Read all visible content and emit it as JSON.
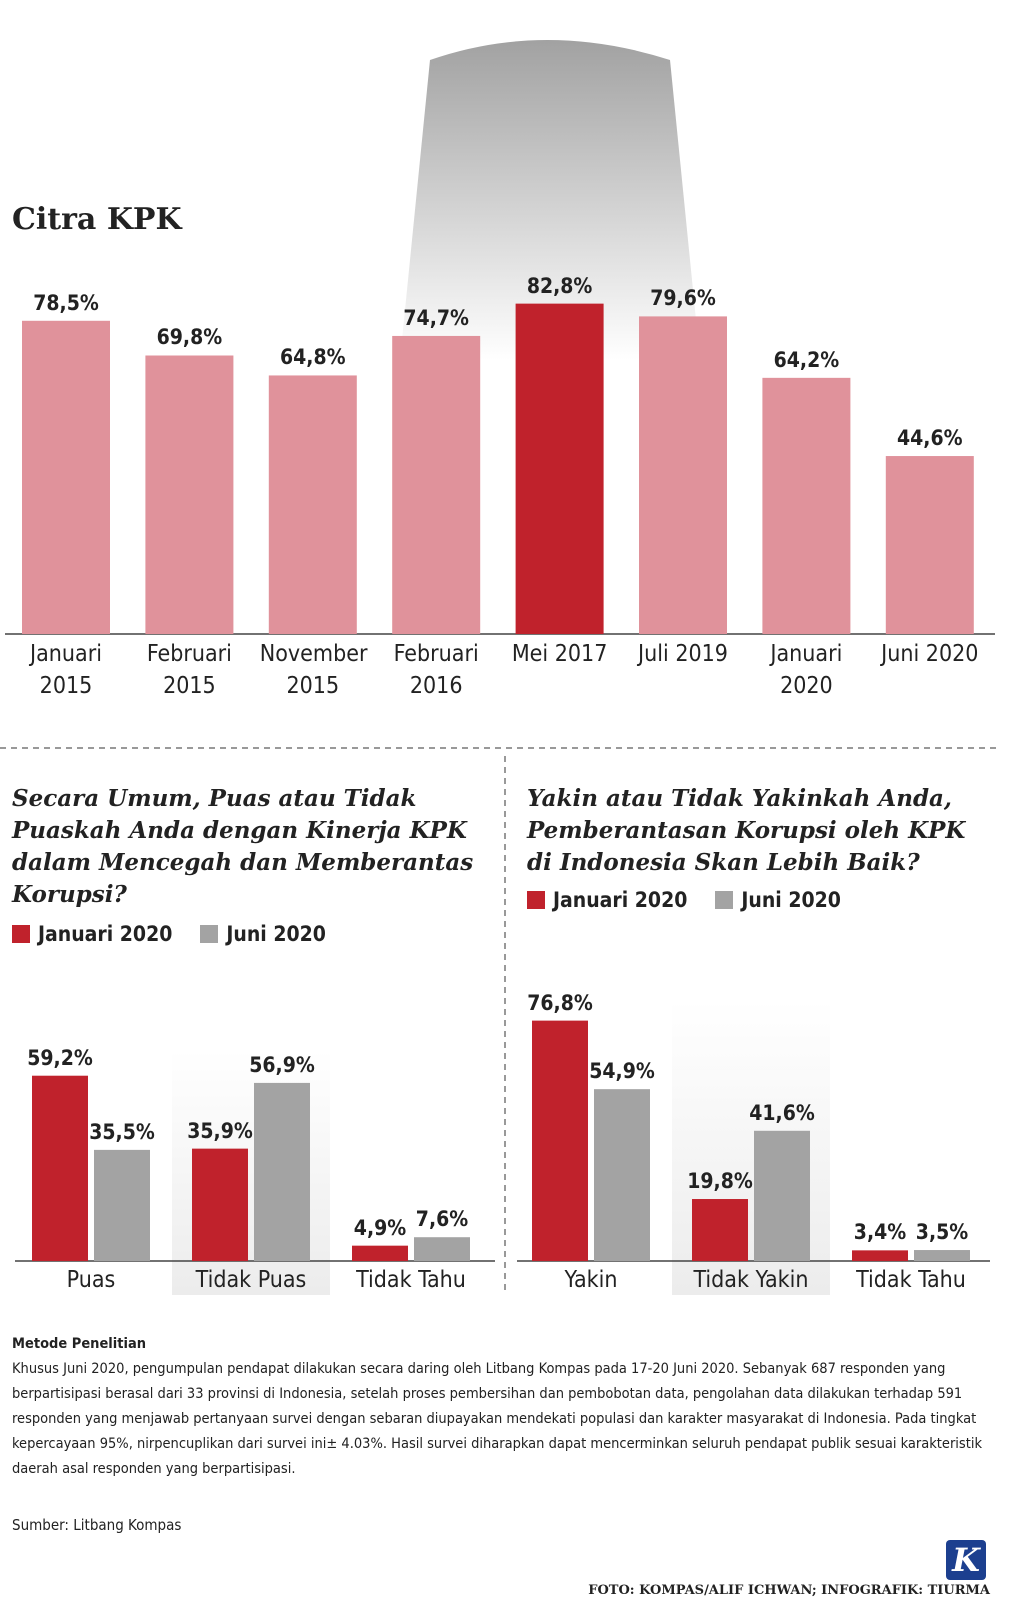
{
  "chart_data": [
    {
      "type": "bar",
      "title": "Citra KPK",
      "categories": [
        "Januari 2015",
        "Februari 2015",
        "November 2015",
        "Februari 2016",
        "Mei 2017",
        "Juli 2019",
        "Januari 2020",
        "Juni 2020"
      ],
      "values": [
        78.5,
        69.8,
        64.8,
        74.7,
        82.8,
        79.6,
        64.2,
        44.6
      ],
      "value_labels": [
        "78,5%",
        "69,8%",
        "64,8%",
        "74,7%",
        "82,8%",
        "79,6%",
        "64,2%",
        "44,6%"
      ],
      "colors": [
        "#e0929b",
        "#e0929b",
        "#e0929b",
        "#e0929b",
        "#c0222c",
        "#e0929b",
        "#e0929b",
        "#e0929b"
      ]
    },
    {
      "type": "grouped-bar",
      "title": "Secara Umum, Puas atau Tidak Puaskah Anda dengan Kinerja KPK dalam Mencegah dan Memberantas Korupsi?",
      "categories": [
        "Puas",
        "Tidak Puas",
        "Tidak Tahu"
      ],
      "series": [
        {
          "name": "Januari 2020",
          "color": "#c0222c",
          "values": [
            59.2,
            35.9,
            4.9
          ],
          "value_labels": [
            "59,2%",
            "35,9%",
            "4,9%"
          ]
        },
        {
          "name": "Juni 2020",
          "color": "#a3a3a3",
          "values": [
            35.5,
            56.9,
            7.6
          ],
          "value_labels": [
            "35,5%",
            "56,9%",
            "7,6%"
          ]
        }
      ]
    },
    {
      "type": "grouped-bar",
      "title": "Yakin atau Tidak Yakinkah Anda, Pemberantasan Korupsi oleh KPK di Indonesia Skan Lebih Baik?",
      "categories": [
        "Yakin",
        "Tidak Yakin",
        "Tidak Tahu"
      ],
      "series": [
        {
          "name": "Januari 2020",
          "color": "#c0222c",
          "values": [
            76.8,
            19.8,
            3.4
          ],
          "value_labels": [
            "76,8%",
            "19,8%",
            "3,4%"
          ]
        },
        {
          "name": "Juni 2020",
          "color": "#a3a3a3",
          "values": [
            54.9,
            41.6,
            3.5
          ],
          "value_labels": [
            "54,9%",
            "41,6%",
            "3,5%"
          ]
        }
      ]
    }
  ],
  "method": {
    "title": "Metode Penelitian",
    "text": "Khusus Juni 2020, pengumpulan pendapat  dilakukan secara daring oleh Litbang Kompas pada 17-20 Juni 2020. Sebanyak 687 responden yang berpartisipasi berasal dari 33 provinsi di Indonesia, setelah proses pembersihan dan pembobotan data, pengolahan data dilakukan terhadap 591 responden yang menjawab pertanyaan survei dengan sebaran diupayakan mendekati populasi dan karakter masyarakat di Indonesia. Pada tingkat kepercayaan 95%, nirpencuplikan dari survei ini± 4.03%. Hasil survei diharapkan dapat mencerminkan seluruh pendapat publik sesuai karakteristik daerah asal responden yang berpartisipasi."
  },
  "source": "Sumber: Litbang Kompas",
  "credit": "FOTO: KOMPAS/ALIF ICHWAN; INFOGRAFIK: TIURMA",
  "logo": "K"
}
